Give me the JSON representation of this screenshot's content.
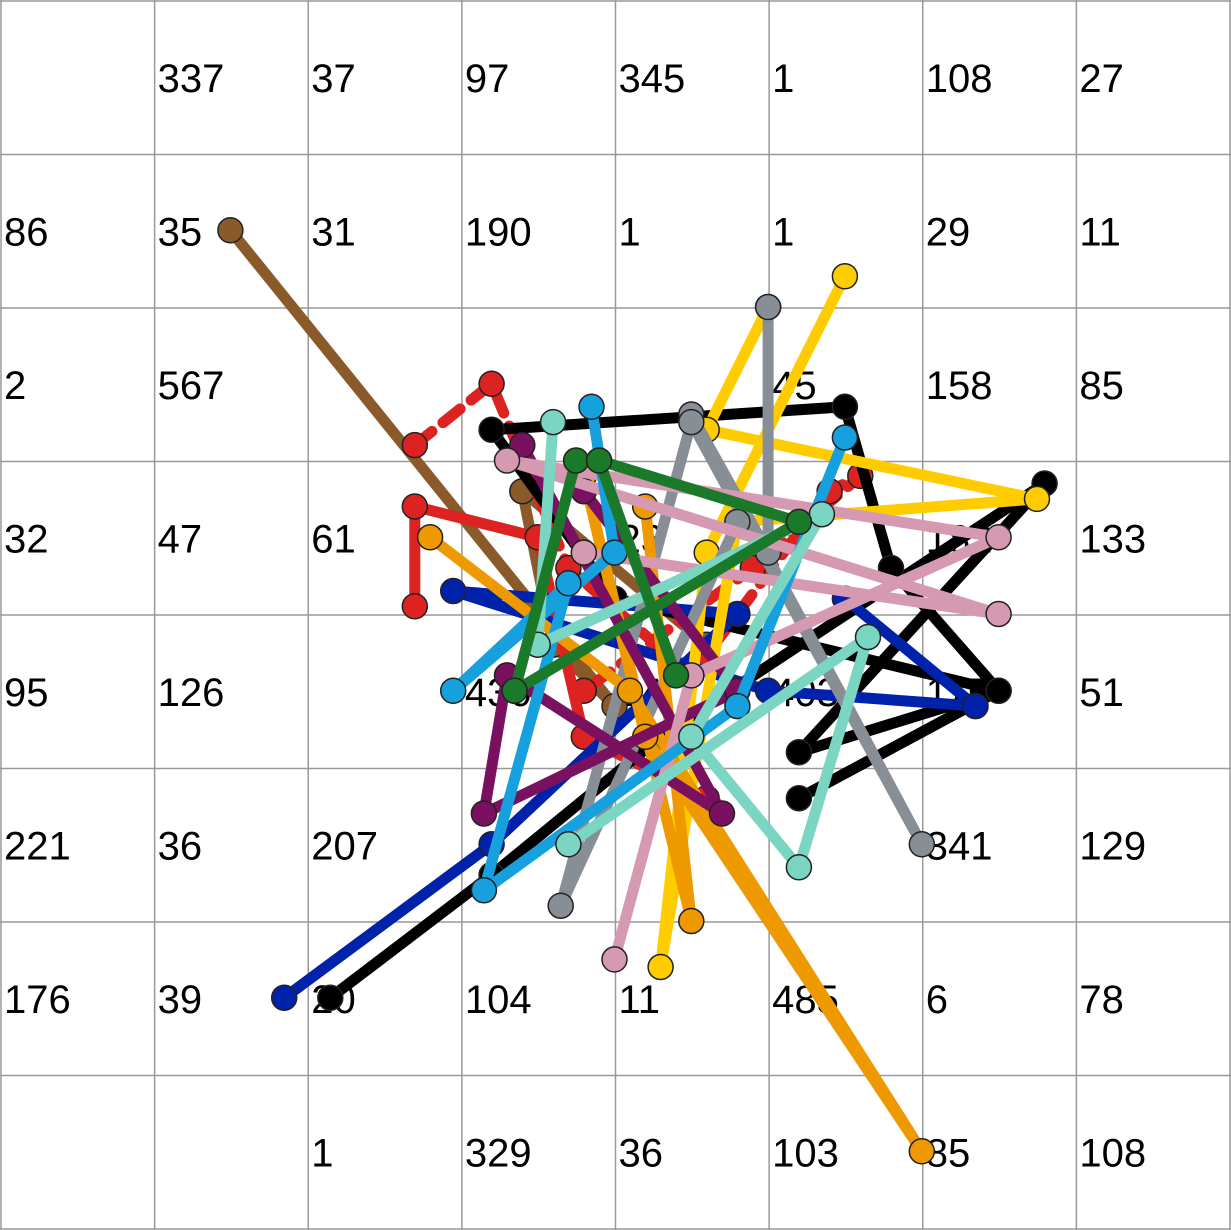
{
  "grid": {
    "rows": 8,
    "cols": 8,
    "counts": [
      [
        "",
        "337",
        "37",
        "97",
        "345",
        "1",
        "108",
        "27"
      ],
      [
        "86",
        "35",
        "31",
        "190",
        "1",
        "1",
        "29",
        "11"
      ],
      [
        "2",
        "567",
        "",
        "",
        "",
        "45",
        "158",
        "85"
      ],
      [
        "32",
        "47",
        "61",
        "",
        "23",
        "",
        "182",
        "133"
      ],
      [
        "95",
        "126",
        "",
        "430",
        "24",
        "403",
        "115",
        "51"
      ],
      [
        "221",
        "36",
        "207",
        "",
        "",
        "",
        "341",
        "129"
      ],
      [
        "176",
        "39",
        "20",
        "104",
        "11",
        "485",
        "6",
        "78"
      ],
      [
        "",
        "",
        "1",
        "329",
        "36",
        "103",
        "85",
        "108"
      ]
    ],
    "line_color": "#999999",
    "text_color": "#000000"
  },
  "trajectories": [
    {
      "color": "#8B5A2B",
      "points": [
        [
          1.5,
          1.5
        ],
        [
          4.0,
          4.6
        ],
        [
          3.6,
          4.2
        ],
        [
          3.4,
          3.2
        ],
        [
          4.6,
          4.2
        ]
      ]
    },
    {
      "color": "#DD2222",
      "dashed": true,
      "points": [
        [
          2.7,
          2.9
        ],
        [
          3.2,
          2.5
        ],
        [
          3.7,
          3.7
        ],
        [
          4.5,
          4.4
        ],
        [
          5.4,
          3.2
        ],
        [
          5.6,
          3.1
        ],
        [
          4.9,
          3.7
        ],
        [
          3.8,
          4.5
        ]
      ]
    },
    {
      "color": "#DD2222",
      "points": [
        [
          2.7,
          3.95
        ],
        [
          2.7,
          3.3
        ],
        [
          3.5,
          3.5
        ],
        [
          3.8,
          4.8
        ],
        [
          4.6,
          5.2
        ]
      ]
    },
    {
      "color": "#000000",
      "points": [
        [
          2.15,
          6.5
        ],
        [
          3.2,
          5.7
        ],
        [
          4.3,
          4.8
        ],
        [
          6.8,
          3.15
        ],
        [
          5.2,
          4.9
        ],
        [
          6.5,
          4.5
        ],
        [
          5.8,
          3.7
        ],
        [
          5.5,
          2.65
        ],
        [
          3.2,
          2.8
        ],
        [
          4.0,
          3.9
        ],
        [
          6.5,
          4.5
        ],
        [
          5.2,
          5.2
        ]
      ]
    },
    {
      "color": "#0022AA",
      "points": [
        [
          1.85,
          6.5
        ],
        [
          3.2,
          5.5
        ],
        [
          4.8,
          4.0
        ],
        [
          2.95,
          3.85
        ],
        [
          5.0,
          4.5
        ],
        [
          6.35,
          4.6
        ],
        [
          5.5,
          3.9
        ]
      ]
    },
    {
      "color": "#FFCC00",
      "points": [
        [
          5.5,
          1.8
        ],
        [
          4.6,
          3.6
        ],
        [
          4.3,
          6.3
        ],
        [
          4.8,
          3.4
        ],
        [
          6.75,
          3.25
        ],
        [
          4.6,
          2.8
        ],
        [
          5.0,
          2.0
        ]
      ]
    },
    {
      "color": "#888E96",
      "points": [
        [
          5.0,
          2.0
        ],
        [
          5.0,
          3.6
        ],
        [
          4.5,
          2.7
        ],
        [
          6.0,
          5.5
        ],
        [
          4.5,
          2.75
        ],
        [
          3.65,
          5.9
        ],
        [
          4.8,
          3.4
        ]
      ]
    },
    {
      "color": "#EE9900",
      "points": [
        [
          2.8,
          3.5
        ],
        [
          4.1,
          4.5
        ],
        [
          6.0,
          7.5
        ],
        [
          4.2,
          4.8
        ],
        [
          3.8,
          3.1
        ],
        [
          4.5,
          6.0
        ],
        [
          4.2,
          3.3
        ]
      ]
    },
    {
      "color": "#7A1060",
      "points": [
        [
          3.4,
          2.9
        ],
        [
          4.7,
          5.3
        ],
        [
          3.3,
          4.4
        ],
        [
          3.15,
          5.3
        ],
        [
          4.8,
          4.5
        ],
        [
          3.8,
          3.2
        ]
      ]
    },
    {
      "color": "#D59AB2",
      "points": [
        [
          4.0,
          6.25
        ],
        [
          4.5,
          4.4
        ],
        [
          6.5,
          3.5
        ],
        [
          3.3,
          3.0
        ],
        [
          6.5,
          4.0
        ],
        [
          3.8,
          3.6
        ]
      ]
    },
    {
      "color": "#16A0DD",
      "points": [
        [
          3.85,
          2.65
        ],
        [
          4.0,
          3.6
        ],
        [
          2.95,
          4.5
        ],
        [
          3.7,
          3.8
        ],
        [
          3.15,
          5.8
        ],
        [
          4.8,
          4.6
        ],
        [
          5.5,
          2.85
        ]
      ]
    },
    {
      "color": "#7AD6C2",
      "points": [
        [
          3.6,
          2.75
        ],
        [
          3.5,
          4.2
        ],
        [
          5.35,
          3.35
        ],
        [
          4.5,
          4.8
        ],
        [
          5.2,
          5.65
        ],
        [
          5.65,
          4.15
        ],
        [
          3.7,
          5.5
        ]
      ]
    },
    {
      "color": "#1A7A2A",
      "points": [
        [
          3.75,
          3.0
        ],
        [
          3.35,
          4.5
        ],
        [
          5.2,
          3.4
        ],
        [
          3.9,
          3.0
        ],
        [
          4.4,
          4.4
        ]
      ]
    }
  ]
}
